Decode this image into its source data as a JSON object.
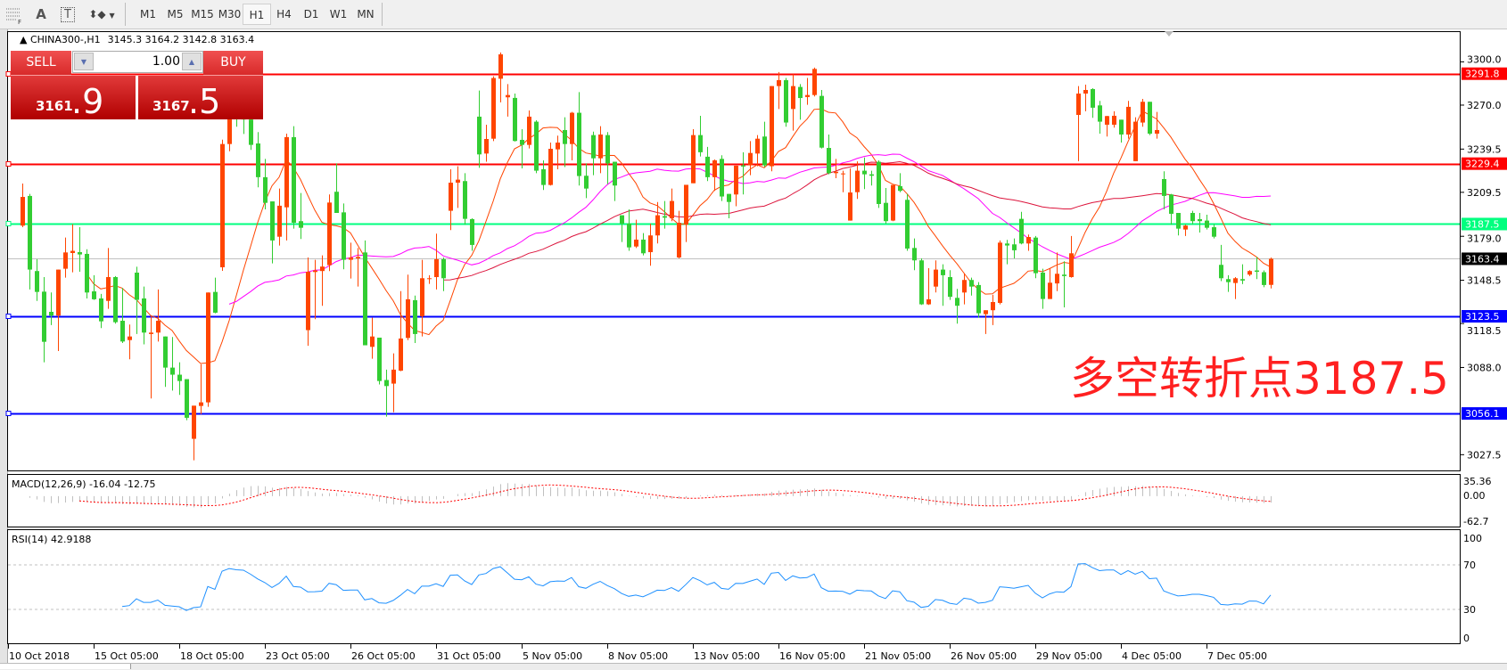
{
  "toolbar": {
    "tools": [
      {
        "icon": "grid-font-icon"
      },
      {
        "label": "A",
        "icon": "text-label-icon"
      },
      {
        "label": "T",
        "icon": "text-box-icon"
      },
      {
        "icon": "arrows-dropdown-icon"
      }
    ],
    "timeframes": [
      "M1",
      "M5",
      "M15",
      "M30",
      "H1",
      "H4",
      "D1",
      "W1",
      "MN"
    ],
    "active_timeframe": "H1"
  },
  "chart_header": {
    "symbol": "CHINA300-,H1",
    "ohlc": "3145.3 3164.2 3142.8 3163.4"
  },
  "trade_panel": {
    "sell_label": "SELL",
    "buy_label": "BUY",
    "volume": "1.00",
    "sell_price_main": "3161",
    "sell_price_pips": ".9",
    "buy_price_main": "3167",
    "buy_price_pips": ".5"
  },
  "annotation": "多空转折点3187.5",
  "price_axis": [
    "3300.0",
    "3270.0",
    "3239.5",
    "3209.5",
    "3179.0",
    "3148.5",
    "3118.5",
    "3088.0",
    "3027.5"
  ],
  "hlines": [
    {
      "value": "3291.8",
      "color": "#ff0000",
      "label_bg": "#ff0000"
    },
    {
      "value": "3229.4",
      "color": "#ff0000",
      "label_bg": "#ff0000"
    },
    {
      "value": "3187.5",
      "color": "#00ff7f",
      "label_bg": "#00ff7f"
    },
    {
      "value": "3163.4",
      "color": "#c0c0c0",
      "label_bg": "#000000"
    },
    {
      "value": "3123.5",
      "color": "#0000ff",
      "label_bg": "#0000ff"
    },
    {
      "value": "3056.1",
      "color": "#0000ff",
      "label_bg": "#0000ff"
    }
  ],
  "time_axis": [
    "10 Oct 2018",
    "15 Oct 05:00",
    "18 Oct 05:00",
    "23 Oct 05:00",
    "26 Oct 05:00",
    "31 Oct 05:00",
    "5 Nov 05:00",
    "8 Nov 05:00",
    "13 Nov 05:00",
    "16 Nov 05:00",
    "21 Nov 05:00",
    "26 Nov 05:00",
    "29 Nov 05:00",
    "4 Dec 05:00",
    "7 Dec 05:00"
  ],
  "macd": {
    "title": "MACD(12,26,9) -16.04 -12.75",
    "axis": [
      "35.36",
      "0.00",
      "-62.7"
    ],
    "histogram_color": "#c0c0c0",
    "signal_color": "#ff0000"
  },
  "rsi": {
    "title": "RSI(14) 42.9188",
    "axis": [
      "100",
      "70",
      "30",
      "0"
    ],
    "levels": [
      70,
      30
    ],
    "color": "#1e90ff"
  },
  "colors": {
    "bull": "#ff4500",
    "bear": "#32cd32",
    "ma_fast": "#ff4500",
    "ma_mid": "#ff00ff",
    "ma_slow": "#dc143c"
  },
  "chart_data": {
    "type": "candlestick",
    "fields": [
      "open",
      "high",
      "low",
      "close"
    ],
    "candles": [
      [
        3186.4,
        3215.6,
        3185.3,
        3206.3
      ],
      [
        3207,
        3208.4,
        3142.1,
        3155.9
      ],
      [
        3154.9,
        3163.1,
        3134.2,
        3140.4
      ],
      [
        3140.6,
        3150.7,
        3091.6,
        3105.8
      ],
      [
        3126.6,
        3140,
        3117.4,
        3124
      ],
      [
        3124,
        3155.9,
        3099.4,
        3155.9
      ],
      [
        3156.5,
        3178.1,
        3150.3,
        3167.8
      ],
      [
        3167.4,
        3187.4,
        3154,
        3168.9
      ],
      [
        3168,
        3185.3,
        3154.4,
        3166.4
      ],
      [
        3166.8,
        3170,
        3135.9,
        3140
      ],
      [
        3140.8,
        3152,
        3134.9,
        3135.3
      ],
      [
        3135.9,
        3139,
        3115.3,
        3120
      ],
      [
        3134.2,
        3170.9,
        3128.7,
        3150.7
      ],
      [
        3150.7,
        3151.4,
        3118.4,
        3119.4
      ],
      [
        3120.4,
        3143.1,
        3105,
        3106
      ],
      [
        3107,
        3117.8,
        3093.7,
        3109.5
      ],
      [
        3153.8,
        3157.9,
        3111.2,
        3134.9
      ],
      [
        3135.9,
        3144.1,
        3104,
        3112.2
      ],
      [
        3111.2,
        3123.5,
        3066.5,
        3112.2
      ],
      [
        3112.2,
        3142.1,
        3106,
        3120.4
      ],
      [
        3109.5,
        3109.5,
        3074.5,
        3087.9
      ],
      [
        3087.9,
        3109.1,
        3072,
        3083
      ],
      [
        3083,
        3091.6,
        3069,
        3078.6
      ],
      [
        3079.9,
        3079.9,
        3051.4,
        3053.1
      ],
      [
        3038.5,
        3061.5,
        3023.6,
        3061.5
      ],
      [
        3061.3,
        3090.2,
        3055.6,
        3063.8
      ],
      [
        3063.8,
        3140,
        3060.7,
        3140
      ],
      [
        3140.4,
        3150.3,
        3125.6,
        3126
      ],
      [
        3157.5,
        3246,
        3155,
        3243
      ],
      [
        3243,
        3275,
        3238,
        3268
      ],
      [
        3268,
        3276,
        3255,
        3262
      ],
      [
        3262,
        3266,
        3250,
        3260
      ],
      [
        3260,
        3261.6,
        3238.9,
        3242.4
      ],
      [
        3243.4,
        3251.3,
        3213,
        3220
      ],
      [
        3220,
        3232.7,
        3197.7,
        3202.2
      ],
      [
        3203.2,
        3203.2,
        3160.2,
        3176.1
      ],
      [
        3178.7,
        3212.1,
        3172.6,
        3200.2
      ],
      [
        3199.1,
        3250.2,
        3176.1,
        3247.8
      ],
      [
        3247.8,
        3255.4,
        3184.3,
        3188.4
      ],
      [
        3189.5,
        3209,
        3177.1,
        3184.9
      ],
      [
        3113.9,
        3164.3,
        3103,
        3154.4
      ],
      [
        3154.2,
        3162.7,
        3121.5,
        3155.3
      ],
      [
        3154.9,
        3165.8,
        3130.8,
        3158
      ],
      [
        3159,
        3208,
        3154.9,
        3202.4
      ],
      [
        3209.9,
        3229.6,
        3195.2,
        3195.2
      ],
      [
        3195.6,
        3201.8,
        3156.1,
        3162.7
      ],
      [
        3162.7,
        3174.6,
        3149.7,
        3164.3
      ],
      [
        3163.7,
        3170.9,
        3144.1,
        3164.7
      ],
      [
        3167.8,
        3176.1,
        3103.4,
        3103.4
      ],
      [
        3102.3,
        3122.5,
        3094.1,
        3109.5
      ],
      [
        3108.7,
        3108.7,
        3076.2,
        3078.6
      ],
      [
        3079.3,
        3086.5,
        3053.9,
        3075.1
      ],
      [
        3076.8,
        3097.8,
        3057,
        3086.5
      ],
      [
        3085.8,
        3141,
        3085.4,
        3108.1
      ],
      [
        3108.5,
        3152.4,
        3107,
        3135.3
      ],
      [
        3134.7,
        3137.9,
        3105,
        3111.2
      ],
      [
        3123.5,
        3162.7,
        3109.5,
        3149.9
      ],
      [
        3149.9,
        3152,
        3146,
        3149.9
      ],
      [
        3150.7,
        3180.8,
        3142.1,
        3163.1
      ],
      [
        3163.1,
        3164.3,
        3141,
        3149.9
      ],
      [
        3196.7,
        3225.5,
        3183.3,
        3216.2
      ],
      [
        3216.2,
        3227.6,
        3198.7,
        3218.3
      ],
      [
        3217.3,
        3222.8,
        3187,
        3191.1
      ],
      [
        3190.9,
        3191.5,
        3168.9,
        3173
      ],
      [
        3262,
        3280.1,
        3226.5,
        3235.8
      ],
      [
        3236.4,
        3256.4,
        3230.7,
        3246.5
      ],
      [
        3246.7,
        3290,
        3245,
        3288.8
      ],
      [
        3288.3,
        3306.5,
        3271.9,
        3305.2
      ],
      [
        3275.4,
        3284.6,
        3262,
        3277
      ],
      [
        3275,
        3278,
        3244.7,
        3245.1
      ],
      [
        3245.9,
        3253.3,
        3226.1,
        3242.4
      ],
      [
        3242.4,
        3266.3,
        3239.9,
        3262
      ],
      [
        3258.5,
        3259.5,
        3222.8,
        3224.5
      ],
      [
        3225.5,
        3231.7,
        3211.1,
        3214.6
      ],
      [
        3214.6,
        3244,
        3214.2,
        3239.7
      ],
      [
        3239.3,
        3248.8,
        3225.5,
        3244
      ],
      [
        3252.7,
        3261.6,
        3227,
        3243
      ],
      [
        3243,
        3265.3,
        3231.7,
        3264.7
      ],
      [
        3264.7,
        3279,
        3214.2,
        3220.8
      ],
      [
        3221,
        3229.6,
        3205.5,
        3212.1
      ],
      [
        3249.2,
        3251.6,
        3221.4,
        3233.1
      ],
      [
        3233.1,
        3255.4,
        3222.8,
        3249.6
      ],
      [
        3249.2,
        3251.3,
        3215.2,
        3229.6
      ],
      [
        3230.7,
        3230.7,
        3203.5,
        3214.2
      ],
      [
        3193.6,
        3193.6,
        3175,
        3187.8
      ],
      [
        3187.8,
        3197.7,
        3168.9,
        3171.3
      ],
      [
        3171.9,
        3190.5,
        3170.9,
        3176.7
      ],
      [
        3176.7,
        3181.2,
        3165.8,
        3167.2
      ],
      [
        3168,
        3187.8,
        3158.6,
        3179.6
      ],
      [
        3179.6,
        3202.8,
        3174,
        3193.6
      ],
      [
        3193,
        3203.5,
        3184.3,
        3191.9
      ],
      [
        3191.5,
        3212.1,
        3189.5,
        3203.5
      ],
      [
        3164.3,
        3196.7,
        3163.7,
        3188.4
      ],
      [
        3187,
        3214.7,
        3175,
        3214.7
      ],
      [
        3215.8,
        3253.3,
        3215.8,
        3249.2
      ],
      [
        3249.2,
        3262.6,
        3234.4,
        3237.3
      ],
      [
        3234.2,
        3241,
        3217.3,
        3220
      ],
      [
        3220,
        3232.3,
        3210.5,
        3231.7
      ],
      [
        3232.7,
        3235.2,
        3203.5,
        3206.6
      ],
      [
        3208.4,
        3208.4,
        3191.5,
        3202.8
      ],
      [
        3208,
        3228,
        3199.8,
        3228
      ],
      [
        3228.2,
        3237.3,
        3208,
        3227.4
      ],
      [
        3228.2,
        3245,
        3221.4,
        3236.8
      ],
      [
        3236.4,
        3249.2,
        3227.6,
        3246.7
      ],
      [
        3248.2,
        3258.5,
        3227,
        3228.2
      ],
      [
        3227.6,
        3283.2,
        3224.1,
        3283.2
      ],
      [
        3283.2,
        3292.9,
        3267.3,
        3287.3
      ],
      [
        3287.3,
        3288.8,
        3255,
        3257.9
      ],
      [
        3267.3,
        3291.4,
        3252.3,
        3283.2
      ],
      [
        3282.6,
        3284.6,
        3259.9,
        3274.9
      ],
      [
        3275.6,
        3288.8,
        3270.2,
        3277
      ],
      [
        3277,
        3296,
        3276,
        3295.1
      ],
      [
        3276.4,
        3280.5,
        3239.9,
        3240.5
      ],
      [
        3240.3,
        3249.6,
        3222,
        3222.8
      ],
      [
        3222.8,
        3232.7,
        3219.3,
        3223.8
      ],
      [
        3222.2,
        3224.5,
        3209.6,
        3222.6
      ],
      [
        3189.9,
        3226.1,
        3189.9,
        3209.4
      ],
      [
        3209.6,
        3231,
        3204.9,
        3224.5
      ],
      [
        3224.5,
        3233.7,
        3211.7,
        3222
      ],
      [
        3222,
        3224.5,
        3214.2,
        3221
      ],
      [
        3230.7,
        3231.7,
        3198.7,
        3201.4
      ],
      [
        3202.2,
        3212.5,
        3187.8,
        3189.5
      ],
      [
        3189.9,
        3214.6,
        3189.5,
        3214.6
      ],
      [
        3213.8,
        3222.8,
        3209.6,
        3210.5
      ],
      [
        3204.3,
        3208.4,
        3168.9,
        3170.5
      ],
      [
        3170.9,
        3177.5,
        3155.5,
        3162.3
      ],
      [
        3162.3,
        3163.7,
        3131.4,
        3131.8
      ],
      [
        3131.8,
        3156.9,
        3131.4,
        3135.3
      ],
      [
        3144.1,
        3162.3,
        3140,
        3155.9
      ],
      [
        3155.9,
        3159.6,
        3130.8,
        3152
      ],
      [
        3150.7,
        3155.5,
        3134.9,
        3137
      ],
      [
        3136.3,
        3142.5,
        3118.4,
        3130.8
      ],
      [
        3140,
        3153.4,
        3131.8,
        3148.7
      ],
      [
        3148.7,
        3150.3,
        3137.9,
        3144.1
      ],
      [
        3145.2,
        3147.2,
        3122.5,
        3125.6
      ],
      [
        3125,
        3127.7,
        3111.2,
        3127.7
      ],
      [
        3127.7,
        3138.4,
        3117.4,
        3133.4
      ],
      [
        3132.8,
        3176.1,
        3131.8,
        3174.6
      ],
      [
        3174,
        3176.5,
        3159.6,
        3172.6
      ],
      [
        3173.4,
        3177.5,
        3163.7,
        3169.3
      ],
      [
        3191.1,
        3196,
        3173.4,
        3174
      ],
      [
        3174,
        3180.2,
        3168.9,
        3178.5
      ],
      [
        3178.1,
        3179.2,
        3149.9,
        3153.4
      ],
      [
        3153.8,
        3156.5,
        3128.7,
        3135.5
      ],
      [
        3135.5,
        3156.9,
        3135.5,
        3146.8
      ],
      [
        3146.3,
        3167.8,
        3141,
        3153
      ],
      [
        3152.4,
        3161.7,
        3129.7,
        3151.4
      ],
      [
        3150.7,
        3179.2,
        3150.3,
        3167.2
      ],
      [
        3263.2,
        3283.2,
        3231.1,
        3278
      ],
      [
        3278,
        3284.2,
        3265.7,
        3280.5
      ],
      [
        3281.1,
        3281.7,
        3261.2,
        3268.2
      ],
      [
        3269.8,
        3272.9,
        3250.2,
        3258.5
      ],
      [
        3256.4,
        3262.6,
        3248.2,
        3262.4
      ],
      [
        3256.4,
        3265.7,
        3254.4,
        3262.6
      ],
      [
        3259.9,
        3259.9,
        3244,
        3249.6
      ],
      [
        3249.6,
        3272.9,
        3246.7,
        3268.8
      ],
      [
        3231.1,
        3261.6,
        3231.1,
        3258.5
      ],
      [
        3257.9,
        3274.3,
        3255,
        3272.3
      ],
      [
        3272.3,
        3272.3,
        3249.2,
        3250.2
      ],
      [
        3250.2,
        3265.3,
        3246.7,
        3252.7
      ],
      [
        3218.7,
        3224.1,
        3197.7,
        3207
      ],
      [
        3208,
        3208.4,
        3187,
        3194.6
      ],
      [
        3195.2,
        3195.2,
        3179.6,
        3184.3
      ],
      [
        3183.7,
        3187,
        3179.2,
        3186.4
      ],
      [
        3195.2,
        3196.7,
        3187.4,
        3189.5
      ],
      [
        3190.9,
        3195.2,
        3181.6,
        3189.5
      ],
      [
        3189.9,
        3194,
        3183.7,
        3184.9
      ],
      [
        3185.3,
        3187.4,
        3177.5,
        3178.7
      ],
      [
        3159.2,
        3173,
        3147.9,
        3149.9
      ],
      [
        3149.3,
        3152,
        3140.4,
        3147.2
      ],
      [
        3146.6,
        3150.7,
        3135.5,
        3149.9
      ],
      [
        3149.3,
        3159.6,
        3145.8,
        3148.3
      ],
      [
        3152.4,
        3155.5,
        3151.4,
        3154.9
      ],
      [
        3155.3,
        3164.7,
        3149.3,
        3154.4
      ],
      [
        3154.1,
        3155.3,
        3143.7,
        3145.2
      ],
      [
        3145.3,
        3164.2,
        3142.8,
        3163.4
      ]
    ]
  }
}
